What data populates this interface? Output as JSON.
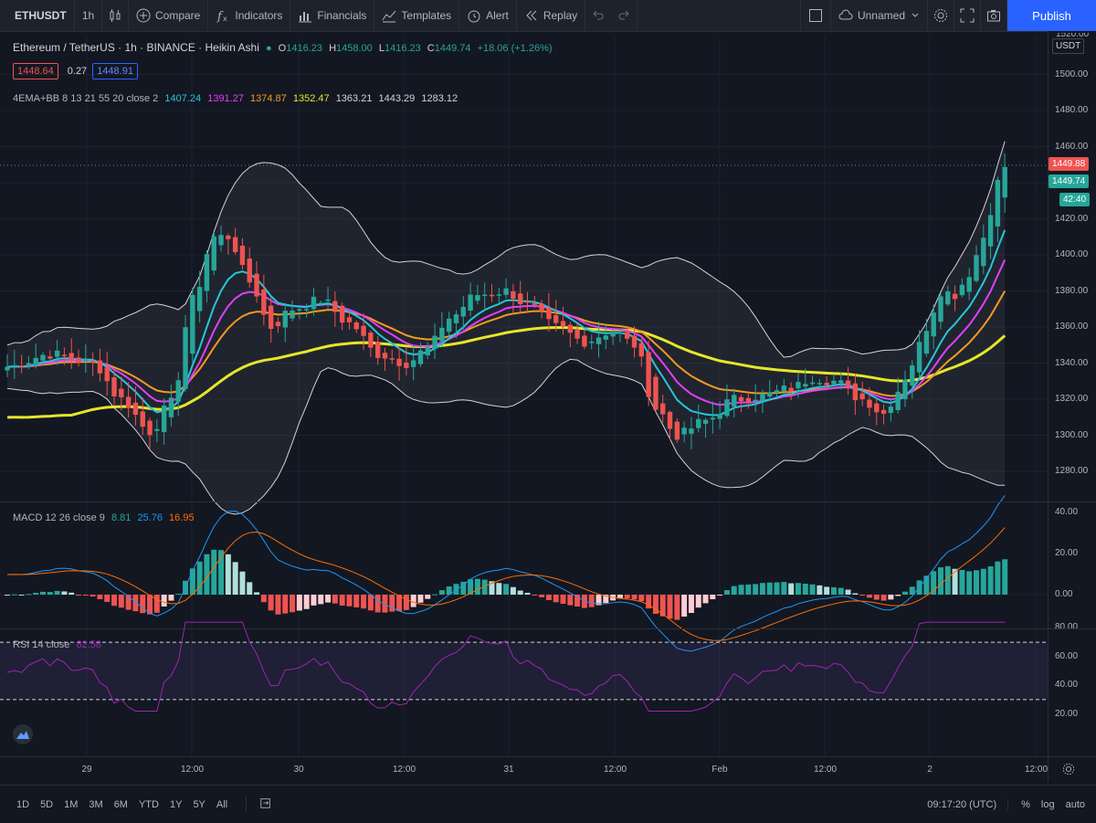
{
  "toolbar": {
    "symbol": "ETHUSDT",
    "interval": "1h",
    "compare": "Compare",
    "indicators": "Indicators",
    "financials": "Financials",
    "templates": "Templates",
    "alert": "Alert",
    "replay": "Replay",
    "layout_name": "Unnamed",
    "publish": "Publish"
  },
  "legend": {
    "title": "Ethereum / TetherUS · 1h · BINANCE · Heikin Ashi",
    "o_label": "O",
    "o": "1416.23",
    "h_label": "H",
    "h": "1458.00",
    "l_label": "L",
    "l": "1416.23",
    "c_label": "C",
    "c": "1449.74",
    "change": "+18.06 (+1.26%)",
    "bid": "1448.64",
    "spread": "0.27",
    "ask": "1448.91"
  },
  "ema_legend": {
    "name": "4EMA+BB 8 13 21 55 20 close 2",
    "v1": "1407.24",
    "v2": "1391.27",
    "v3": "1374.87",
    "v4": "1352.47",
    "v5": "1363.21",
    "v6": "1443.29",
    "v7": "1283.12"
  },
  "macd_legend": {
    "name": "MACD 12 26 close 9",
    "v1": "8.81",
    "v2": "25.76",
    "v3": "16.95"
  },
  "rsi_legend": {
    "name": "RSI 14 close",
    "v1": "82.58"
  },
  "price_scale": {
    "currency": "USDT",
    "ticks": [
      "1500.00",
      "1480.00",
      "1460.00",
      "1420.00",
      "1400.00",
      "1380.00",
      "1360.00",
      "1340.00",
      "1320.00",
      "1300.00",
      "1280.00"
    ],
    "last_price": "1449.88",
    "close_price": "1449.74",
    "countdown": "42:40",
    "top_partial": "1520.00"
  },
  "macd_scale": {
    "ticks": [
      "40.00",
      "20.00",
      "0.00"
    ]
  },
  "rsi_scale": {
    "ticks": [
      "80.00",
      "60.00",
      "40.00",
      "20.00"
    ]
  },
  "time_axis": {
    "labels": [
      "29",
      "12:00",
      "30",
      "12:00",
      "31",
      "12:00",
      "Feb",
      "12:00",
      "2",
      "12:00"
    ]
  },
  "bottom": {
    "ranges": [
      "1D",
      "5D",
      "1M",
      "3M",
      "6M",
      "YTD",
      "1Y",
      "5Y",
      "All"
    ],
    "time": "09:17:20 (UTC)",
    "pct": "%",
    "log": "log",
    "auto": "auto"
  },
  "colors": {
    "up": "#26a69a",
    "down": "#ef5350",
    "ema8": "#26c6da",
    "ema13": "#e040fb",
    "ema21": "#f59a23",
    "ema55": "#e6e62a",
    "bb": "#d1d4dc",
    "accent": "#2962ff"
  }
}
